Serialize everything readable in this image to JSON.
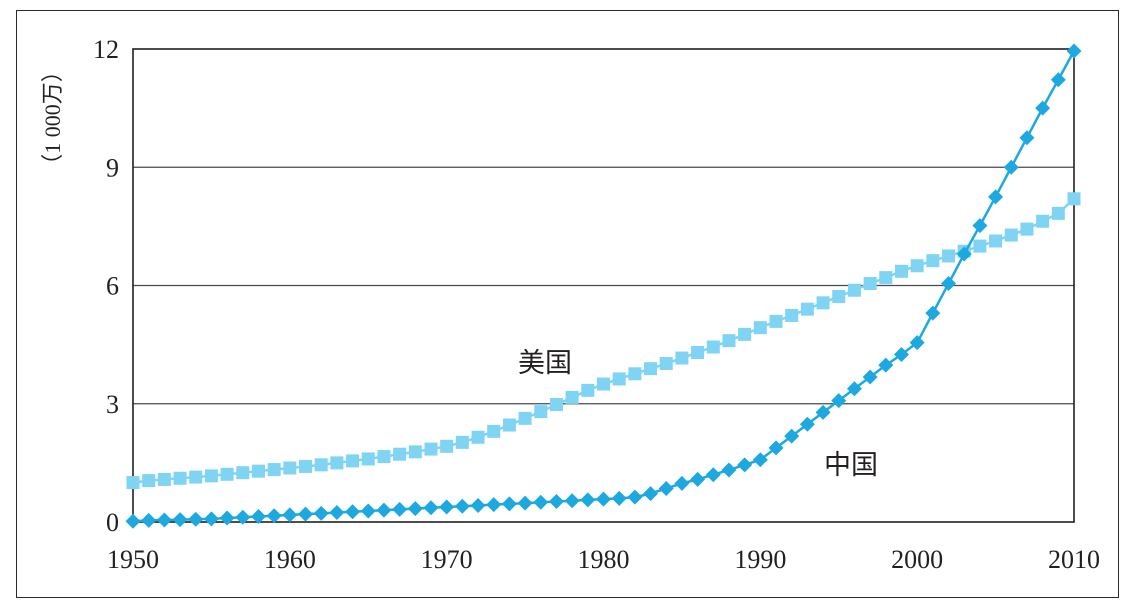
{
  "chart_data": {
    "type": "line",
    "ylabel": "（1 000万）",
    "xlim": [
      1950,
      2010
    ],
    "ylim": [
      0,
      12
    ],
    "x_ticks": [
      "1950",
      "1960",
      "1970",
      "1980",
      "1990",
      "2000",
      "2010"
    ],
    "y_ticks": [
      "0",
      "3",
      "6",
      "9",
      "12"
    ],
    "grid": "horizontal",
    "legend": "inline-labels",
    "x": [
      1950,
      1951,
      1952,
      1953,
      1954,
      1955,
      1956,
      1957,
      1958,
      1959,
      1960,
      1961,
      1962,
      1963,
      1964,
      1965,
      1966,
      1967,
      1968,
      1969,
      1970,
      1971,
      1972,
      1973,
      1974,
      1975,
      1976,
      1977,
      1978,
      1979,
      1980,
      1981,
      1982,
      1983,
      1984,
      1985,
      1986,
      1987,
      1988,
      1989,
      1990,
      1991,
      1992,
      1993,
      1994,
      1995,
      1996,
      1997,
      1998,
      1999,
      2000,
      2001,
      2002,
      2003,
      2004,
      2005,
      2006,
      2007,
      2008,
      2009,
      2010
    ],
    "series": [
      {
        "name": "美国",
        "color": "#7fd3f3",
        "marker": "square",
        "values": [
          1.0,
          1.05,
          1.08,
          1.11,
          1.14,
          1.17,
          1.21,
          1.25,
          1.29,
          1.33,
          1.37,
          1.41,
          1.45,
          1.5,
          1.55,
          1.6,
          1.66,
          1.72,
          1.78,
          1.85,
          1.92,
          2.02,
          2.15,
          2.3,
          2.46,
          2.63,
          2.8,
          2.98,
          3.16,
          3.34,
          3.5,
          3.63,
          3.76,
          3.89,
          4.02,
          4.16,
          4.3,
          4.44,
          4.6,
          4.76,
          4.93,
          5.09,
          5.24,
          5.4,
          5.56,
          5.72,
          5.88,
          6.05,
          6.2,
          6.36,
          6.5,
          6.63,
          6.75,
          6.87,
          7.0,
          7.13,
          7.28,
          7.43,
          7.63,
          7.83,
          8.2
        ]
      },
      {
        "name": "中国",
        "color": "#1ea8e0",
        "marker": "diamond",
        "values": [
          0.02,
          0.04,
          0.05,
          0.06,
          0.07,
          0.08,
          0.1,
          0.12,
          0.14,
          0.16,
          0.18,
          0.2,
          0.22,
          0.24,
          0.26,
          0.28,
          0.3,
          0.32,
          0.34,
          0.36,
          0.38,
          0.4,
          0.42,
          0.44,
          0.46,
          0.48,
          0.5,
          0.52,
          0.54,
          0.56,
          0.58,
          0.6,
          0.63,
          0.72,
          0.85,
          0.98,
          1.08,
          1.2,
          1.32,
          1.45,
          1.58,
          1.88,
          2.18,
          2.48,
          2.78,
          3.08,
          3.38,
          3.68,
          3.98,
          4.25,
          4.55,
          5.3,
          6.05,
          6.8,
          7.52,
          8.25,
          9.0,
          9.75,
          10.5,
          11.22,
          11.95
        ]
      }
    ]
  }
}
